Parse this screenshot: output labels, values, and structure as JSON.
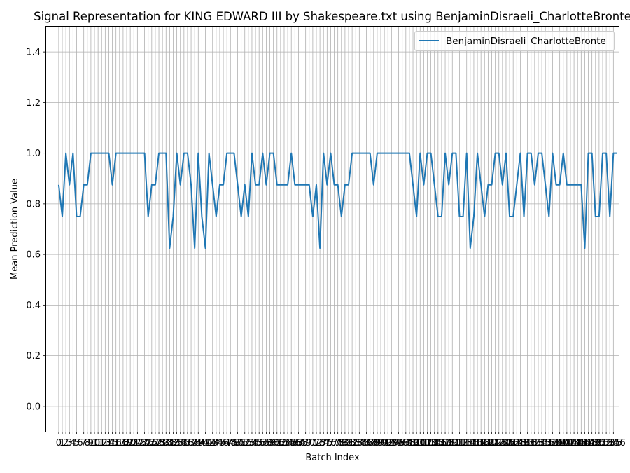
{
  "chart_data": {
    "type": "line",
    "title": "Signal Representation for KING EDWARD III by Shakespeare.txt using BenjaminDisraeli_CharlotteBronte",
    "xlabel": "Batch Index",
    "ylabel": "Mean Prediction Value",
    "ylim": [
      -0.1,
      1.5
    ],
    "xlim": [
      -3.5,
      156.5
    ],
    "yticks": [
      0.0,
      0.2,
      0.4,
      0.6,
      0.8,
      1.0,
      1.2,
      1.4
    ],
    "ytick_labels": [
      "0.0",
      "0.2",
      "0.4",
      "0.6",
      "0.8",
      "1.0",
      "1.2",
      "1.4"
    ],
    "grid": true,
    "legend_position": "top-right",
    "line_color": "#1f77b4",
    "series": [
      {
        "name": "BenjaminDisraeli_CharlotteBronte",
        "values": [
          0.875,
          0.75,
          1.0,
          0.875,
          1.0,
          0.75,
          0.75,
          0.875,
          0.875,
          1.0,
          1.0,
          1.0,
          1.0,
          1.0,
          1.0,
          0.875,
          1.0,
          1.0,
          1.0,
          1.0,
          1.0,
          1.0,
          1.0,
          1.0,
          1.0,
          0.75,
          0.875,
          0.875,
          1.0,
          1.0,
          1.0,
          0.625,
          0.75,
          1.0,
          0.875,
          1.0,
          1.0,
          0.875,
          0.625,
          1.0,
          0.75,
          0.625,
          1.0,
          0.875,
          0.75,
          0.875,
          0.875,
          1.0,
          1.0,
          1.0,
          0.875,
          0.75,
          0.875,
          0.75,
          1.0,
          0.875,
          0.875,
          1.0,
          0.875,
          1.0,
          1.0,
          0.875,
          0.875,
          0.875,
          0.875,
          1.0,
          0.875,
          0.875,
          0.875,
          0.875,
          0.875,
          0.75,
          0.875,
          0.625,
          1.0,
          0.875,
          1.0,
          0.875,
          0.875,
          0.75,
          0.875,
          0.875,
          1.0,
          1.0,
          1.0,
          1.0,
          1.0,
          1.0,
          0.875,
          1.0,
          1.0,
          1.0,
          1.0,
          1.0,
          1.0,
          1.0,
          1.0,
          1.0,
          1.0,
          0.875,
          0.75,
          1.0,
          0.875,
          1.0,
          1.0,
          0.875,
          0.75,
          0.75,
          1.0,
          0.875,
          1.0,
          1.0,
          0.75,
          0.75,
          1.0,
          0.625,
          0.75,
          1.0,
          0.875,
          0.75,
          0.875,
          0.875,
          1.0,
          1.0,
          0.875,
          1.0,
          0.75,
          0.75,
          0.875,
          1.0,
          0.75,
          1.0,
          1.0,
          0.875,
          1.0,
          1.0,
          0.875,
          0.75,
          1.0,
          0.875,
          0.875,
          1.0,
          0.875,
          0.875,
          0.875,
          0.875,
          0.875,
          0.625,
          1.0,
          1.0,
          0.75,
          0.75,
          1.0,
          1.0,
          0.75,
          1.0,
          1.0
        ]
      }
    ]
  }
}
